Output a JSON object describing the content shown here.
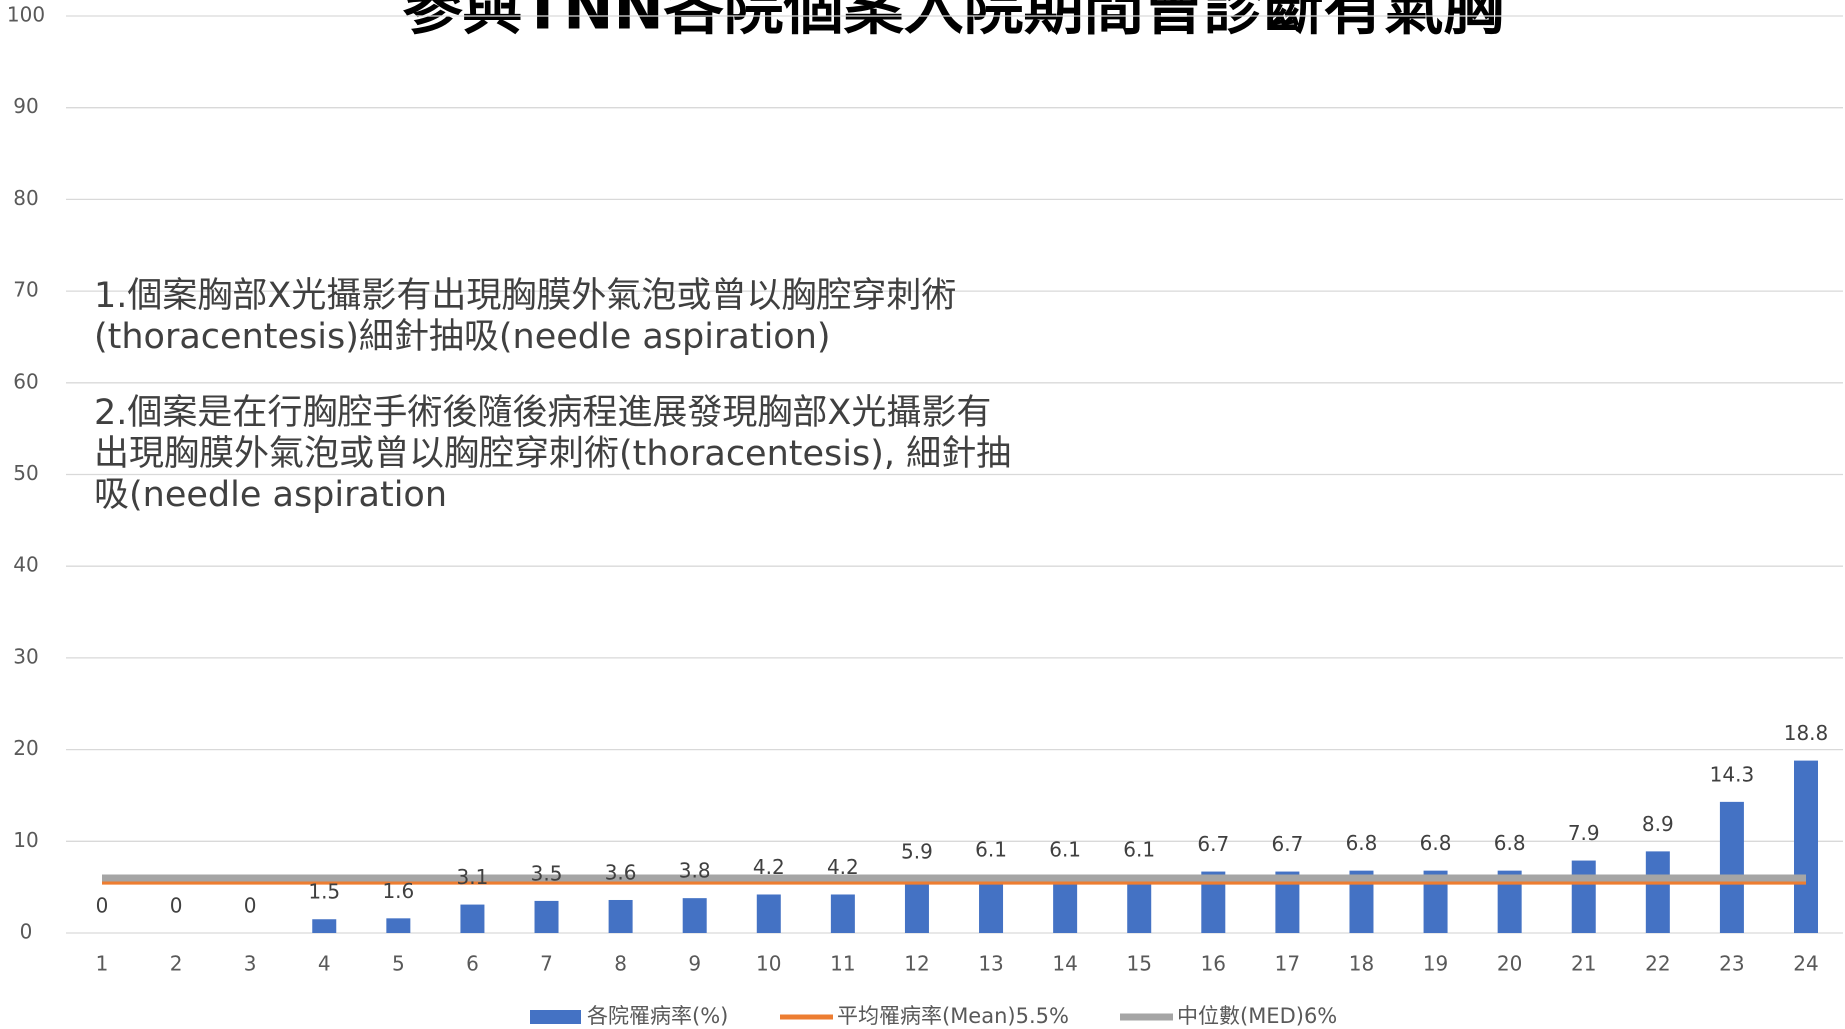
{
  "chart_data": {
    "type": "bar",
    "title": "參與TNN各院個案入院期間曾診斷有氣胸",
    "annotations": [
      "1.個案胸部X光攝影有出現胸膜外氣泡或曾以胸腔穿刺術",
      "(thoracentesis)細針抽吸(needle aspiration)",
      "2.個案是在行胸腔手術後隨後病程進展發現胸部X光攝影有",
      "出現胸膜外氣泡或曾以胸腔穿刺術(thoracentesis), 細針抽",
      "吸(needle aspiration"
    ],
    "categories": [
      "1",
      "2",
      "3",
      "4",
      "5",
      "6",
      "7",
      "8",
      "9",
      "10",
      "11",
      "12",
      "13",
      "14",
      "15",
      "16",
      "17",
      "18",
      "19",
      "20",
      "21",
      "22",
      "23",
      "24"
    ],
    "series": [
      {
        "name": "各院罹病率(%)",
        "type": "bar",
        "color": "#4472c4",
        "values": [
          0,
          0,
          0,
          1.5,
          1.6,
          3.1,
          3.5,
          3.6,
          3.8,
          4.2,
          4.2,
          5.9,
          6.1,
          6.1,
          6.1,
          6.7,
          6.7,
          6.8,
          6.8,
          6.8,
          7.9,
          8.9,
          14.3,
          18.8
        ]
      },
      {
        "name": "平均罹病率(Mean)5.5%",
        "type": "line",
        "color": "#ed7d31",
        "values": [
          5.5,
          5.5,
          5.5,
          5.5,
          5.5,
          5.5,
          5.5,
          5.5,
          5.5,
          5.5,
          5.5,
          5.5,
          5.5,
          5.5,
          5.5,
          5.5,
          5.5,
          5.5,
          5.5,
          5.5,
          5.5,
          5.5,
          5.5,
          5.5
        ]
      },
      {
        "name": "中位數(MED)6%",
        "type": "line",
        "color": "#a5a5a5",
        "values": [
          6,
          6,
          6,
          6,
          6,
          6,
          6,
          6,
          6,
          6,
          6,
          6,
          6,
          6,
          6,
          6,
          6,
          6,
          6,
          6,
          6,
          6,
          6,
          6
        ]
      }
    ],
    "ylim": [
      0,
      100
    ],
    "yticks": [
      0,
      10,
      20,
      30,
      40,
      50,
      60,
      70,
      80,
      90,
      100
    ],
    "grid": true,
    "legend": "bottom"
  }
}
